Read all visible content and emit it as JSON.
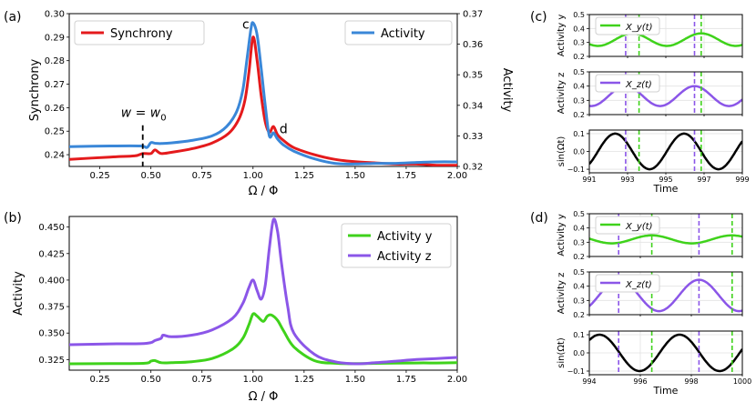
{
  "chart_data": [
    {
      "id": "a",
      "panel_label": "(a)",
      "type": "line",
      "xlabel": "Ω / Φ",
      "ylabel": "Synchrony",
      "y2label": "Activity",
      "xlim": [
        0.1,
        2.0
      ],
      "ylim": [
        0.235,
        0.3
      ],
      "y2lim": [
        0.32,
        0.37
      ],
      "xticks": [
        0.25,
        0.5,
        0.75,
        1.0,
        1.25,
        1.5,
        1.75,
        2.0
      ],
      "xtick_labels": [
        "0.25",
        "0.50",
        "0.75",
        "1.00",
        "1.25",
        "1.50",
        "1.75",
        "2.00"
      ],
      "yticks": [
        0.24,
        0.25,
        0.26,
        0.27,
        0.28,
        0.29,
        0.3
      ],
      "ytick_labels": [
        "0.24",
        "0.25",
        "0.26",
        "0.27",
        "0.28",
        "0.29",
        "0.30"
      ],
      "y2ticks": [
        0.32,
        0.33,
        0.34,
        0.35,
        0.36,
        0.37
      ],
      "y2tick_labels": [
        "0.32",
        "0.33",
        "0.34",
        "0.35",
        "0.36",
        "0.37"
      ],
      "series": [
        {
          "name": "Synchrony",
          "axis": "left",
          "color": "#e41a1c",
          "x": [
            0.1,
            0.3,
            0.42,
            0.46,
            0.5,
            0.52,
            0.55,
            0.6,
            0.7,
            0.8,
            0.88,
            0.93,
            0.96,
            0.98,
            1.0,
            1.02,
            1.04,
            1.06,
            1.08,
            1.1,
            1.12,
            1.15,
            1.2,
            1.3,
            1.4,
            1.5,
            1.6,
            1.7,
            1.8,
            1.9,
            2.0
          ],
          "values": [
            0.238,
            0.239,
            0.2395,
            0.2405,
            0.2405,
            0.242,
            0.2405,
            0.241,
            0.2425,
            0.245,
            0.249,
            0.255,
            0.263,
            0.275,
            0.29,
            0.28,
            0.265,
            0.254,
            0.2495,
            0.252,
            0.2485,
            0.246,
            0.243,
            0.24,
            0.238,
            0.237,
            0.2365,
            0.236,
            0.236,
            0.2355,
            0.2355
          ]
        },
        {
          "name": "Activity",
          "axis": "right",
          "color": "#3a87d8",
          "x": [
            0.1,
            0.3,
            0.45,
            0.48,
            0.5,
            0.52,
            0.55,
            0.6,
            0.7,
            0.8,
            0.87,
            0.92,
            0.95,
            0.97,
            0.99,
            1.0,
            1.02,
            1.04,
            1.06,
            1.08,
            1.1,
            1.12,
            1.15,
            1.2,
            1.3,
            1.4,
            1.5,
            1.6,
            1.7,
            1.8,
            1.9,
            2.0
          ],
          "values": [
            0.3265,
            0.3267,
            0.3267,
            0.3262,
            0.3278,
            0.3276,
            0.3275,
            0.3277,
            0.3285,
            0.33,
            0.333,
            0.338,
            0.345,
            0.355,
            0.365,
            0.367,
            0.363,
            0.352,
            0.34,
            0.33,
            0.331,
            0.329,
            0.327,
            0.325,
            0.3225,
            0.321,
            0.3208,
            0.321,
            0.321,
            0.3213,
            0.3215,
            0.3215
          ]
        }
      ],
      "annotations": [
        {
          "text": "c",
          "x": 0.965,
          "y": 0.296
        },
        {
          "text": "d",
          "x": 1.13,
          "y": 0.251
        },
        {
          "text": "w = w",
          "subscript": "0",
          "x": 0.46,
          "y": 0.258
        }
      ],
      "vline": {
        "x": 0.46,
        "style": "dashed",
        "color": "#000000"
      },
      "legend": [
        "top-left",
        "top-right"
      ]
    },
    {
      "id": "b",
      "panel_label": "(b)",
      "type": "line",
      "xlabel": "Ω / Φ",
      "ylabel": "Activity",
      "xlim": [
        0.1,
        2.0
      ],
      "ylim": [
        0.315,
        0.46
      ],
      "xticks": [
        0.25,
        0.5,
        0.75,
        1.0,
        1.25,
        1.5,
        1.75,
        2.0
      ],
      "xtick_labels": [
        "0.25",
        "0.50",
        "0.75",
        "1.00",
        "1.25",
        "1.50",
        "1.75",
        "2.00"
      ],
      "yticks": [
        0.325,
        0.35,
        0.375,
        0.4,
        0.425,
        0.45
      ],
      "ytick_labels": [
        "0.325",
        "0.350",
        "0.375",
        "0.400",
        "0.425",
        "0.450"
      ],
      "series": [
        {
          "name": "Activity y",
          "color": "#3fd21b",
          "x": [
            0.1,
            0.3,
            0.47,
            0.5,
            0.52,
            0.55,
            0.6,
            0.7,
            0.8,
            0.9,
            0.95,
            0.98,
            1.0,
            1.02,
            1.05,
            1.07,
            1.09,
            1.12,
            1.15,
            1.2,
            1.3,
            1.4,
            1.5,
            1.6,
            1.7,
            1.8,
            1.9,
            2.0
          ],
          "values": [
            0.321,
            0.3212,
            0.3215,
            0.3235,
            0.324,
            0.322,
            0.322,
            0.323,
            0.326,
            0.335,
            0.345,
            0.358,
            0.368,
            0.366,
            0.361,
            0.366,
            0.367,
            0.362,
            0.352,
            0.337,
            0.324,
            0.3215,
            0.3212,
            0.3214,
            0.3216,
            0.3218,
            0.3218,
            0.322
          ]
        },
        {
          "name": "Activity z",
          "color": "#8b56e8",
          "x": [
            0.1,
            0.3,
            0.45,
            0.5,
            0.52,
            0.55,
            0.56,
            0.6,
            0.7,
            0.8,
            0.9,
            0.95,
            0.98,
            1.0,
            1.02,
            1.04,
            1.06,
            1.08,
            1.1,
            1.12,
            1.14,
            1.17,
            1.2,
            1.3,
            1.4,
            1.5,
            1.6,
            1.7,
            1.8,
            1.9,
            2.0
          ],
          "values": [
            0.339,
            0.3398,
            0.34,
            0.341,
            0.343,
            0.345,
            0.348,
            0.3465,
            0.348,
            0.353,
            0.364,
            0.378,
            0.393,
            0.4,
            0.39,
            0.382,
            0.395,
            0.43,
            0.457,
            0.446,
            0.415,
            0.375,
            0.35,
            0.33,
            0.323,
            0.321,
            0.322,
            0.3235,
            0.325,
            0.326,
            0.327
          ]
        }
      ],
      "legend": "top-right"
    },
    {
      "id": "c",
      "panel_label": "(c)",
      "type": "line",
      "xlabel": "Time",
      "xlim": [
        991,
        999
      ],
      "xticks": [
        991,
        993,
        995,
        997,
        999
      ],
      "xtick_labels": [
        "991",
        "993",
        "995",
        "997",
        "999"
      ],
      "vlines": [
        {
          "x": 992.9,
          "color": "#8b56e8"
        },
        {
          "x": 993.6,
          "color": "#3fd21b"
        },
        {
          "x": 996.5,
          "color": "#8b56e8"
        },
        {
          "x": 996.85,
          "color": "#3fd21b"
        }
      ],
      "subplots": [
        {
          "ylabel": "Activity y",
          "ylim": [
            0.2,
            0.5
          ],
          "yticks": [
            0.2,
            0.3,
            0.4,
            0.5
          ],
          "ytick_labels": [
            "0.2",
            "0.3",
            "0.4",
            "0.5"
          ],
          "color": "#3fd21b",
          "legend": "X_y(t)",
          "mean": 0.32,
          "amp": 0.045,
          "period": 3.6,
          "phase_peak": 993.25
        },
        {
          "ylabel": "Activity z",
          "ylim": [
            0.2,
            0.5
          ],
          "yticks": [
            0.2,
            0.3,
            0.4,
            0.5
          ],
          "ytick_labels": [
            "0.2",
            "0.3",
            "0.4",
            "0.5"
          ],
          "color": "#8b56e8",
          "legend": "X_z(t)",
          "mean": 0.33,
          "amp": 0.07,
          "period": 3.6,
          "phase_peak": 992.9
        },
        {
          "ylabel": "sin(Ωt)",
          "ylim": [
            -0.12,
            0.12
          ],
          "yticks": [
            -0.1,
            0.0,
            0.1
          ],
          "ytick_labels": [
            "−0.1",
            "0.0",
            "0.1"
          ],
          "color": "#000000",
          "legend": "",
          "mean": 0.0,
          "amp": 0.1,
          "period": 3.6,
          "phase_peak": 992.35
        }
      ]
    },
    {
      "id": "d",
      "panel_label": "(d)",
      "type": "line",
      "xlabel": "Time",
      "xlim": [
        994,
        1000
      ],
      "xticks": [
        994,
        996,
        998,
        1000
      ],
      "xtick_labels": [
        "994",
        "996",
        "998",
        "1000"
      ],
      "vlines": [
        {
          "x": 995.15,
          "color": "#8b56e8"
        },
        {
          "x": 996.45,
          "color": "#3fd21b"
        },
        {
          "x": 998.3,
          "color": "#8b56e8"
        },
        {
          "x": 999.6,
          "color": "#3fd21b"
        }
      ],
      "subplots": [
        {
          "ylabel": "Activity y",
          "ylim": [
            0.2,
            0.5
          ],
          "yticks": [
            0.2,
            0.3,
            0.4,
            0.5
          ],
          "ytick_labels": [
            "0.2",
            "0.3",
            "0.4",
            "0.5"
          ],
          "color": "#3fd21b",
          "legend": "X_y(t)",
          "mean": 0.32,
          "amp": 0.028,
          "period": 3.14,
          "phase_peak": 996.45
        },
        {
          "ylabel": "Activity z",
          "ylim": [
            0.2,
            0.5
          ],
          "yticks": [
            0.2,
            0.3,
            0.4,
            0.5
          ],
          "ytick_labels": [
            "0.2",
            "0.3",
            "0.4",
            "0.5"
          ],
          "color": "#8b56e8",
          "legend": "X_z(t)",
          "mean": 0.335,
          "amp": 0.11,
          "period": 3.14,
          "phase_peak": 998.3
        },
        {
          "ylabel": "sin(Ωt)",
          "ylim": [
            -0.12,
            0.12
          ],
          "yticks": [
            -0.1,
            0.0,
            0.1
          ],
          "ytick_labels": [
            "−0.1",
            "0.0",
            "0.1"
          ],
          "color": "#000000",
          "legend": "",
          "mean": 0.0,
          "amp": 0.1,
          "period": 3.14,
          "phase_peak": 994.4
        }
      ]
    }
  ]
}
